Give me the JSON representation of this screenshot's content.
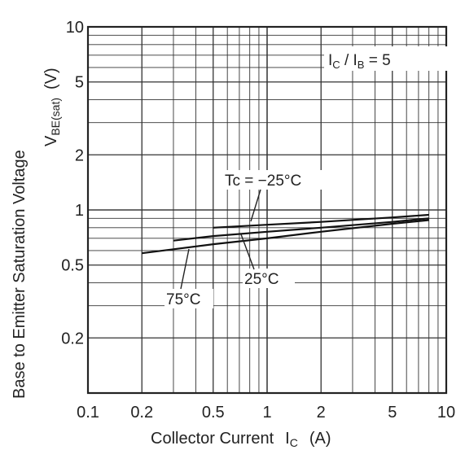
{
  "chart_data": {
    "type": "line",
    "xlabel": "Collector Current",
    "xlabel_symbol": "I",
    "xlabel_subscript": "C",
    "xlabel_unit": "(A)",
    "ylabel": "Base to Emitter Saturation Voltage",
    "ylabel_symbol": "V",
    "ylabel_subscript": "BE(sat)",
    "ylabel_unit": "(V)",
    "xscale": "log",
    "yscale": "log",
    "xlim": [
      0.1,
      10
    ],
    "ylim": [
      0.1,
      10
    ],
    "grid": true,
    "x_ticks": [
      "0.1",
      "0.2",
      "0.5",
      "1",
      "2",
      "5",
      "10"
    ],
    "y_ticks": [
      "10",
      "5",
      "2",
      "1",
      "0.5",
      "0.2"
    ],
    "condition": {
      "lhs_main": "I",
      "lhs_sub": "C",
      "sep": " / ",
      "rhs_main": "I",
      "rhs_sub": "B",
      "value": " = 5"
    },
    "series": [
      {
        "name": "Tc = −25°C",
        "x": [
          0.5,
          1,
          2,
          5,
          8
        ],
        "y": [
          0.8,
          0.83,
          0.86,
          0.91,
          0.94
        ]
      },
      {
        "name": "25°C",
        "x": [
          0.3,
          0.5,
          1,
          2,
          5,
          8
        ],
        "y": [
          0.68,
          0.72,
          0.76,
          0.8,
          0.86,
          0.9
        ]
      },
      {
        "name": "75°C",
        "x": [
          0.2,
          0.3,
          0.5,
          1,
          2,
          5,
          8
        ],
        "y": [
          0.58,
          0.61,
          0.65,
          0.7,
          0.76,
          0.84,
          0.88
        ]
      }
    ],
    "labels": [
      "Tc = −25°C",
      "25°C",
      "75°C"
    ]
  }
}
